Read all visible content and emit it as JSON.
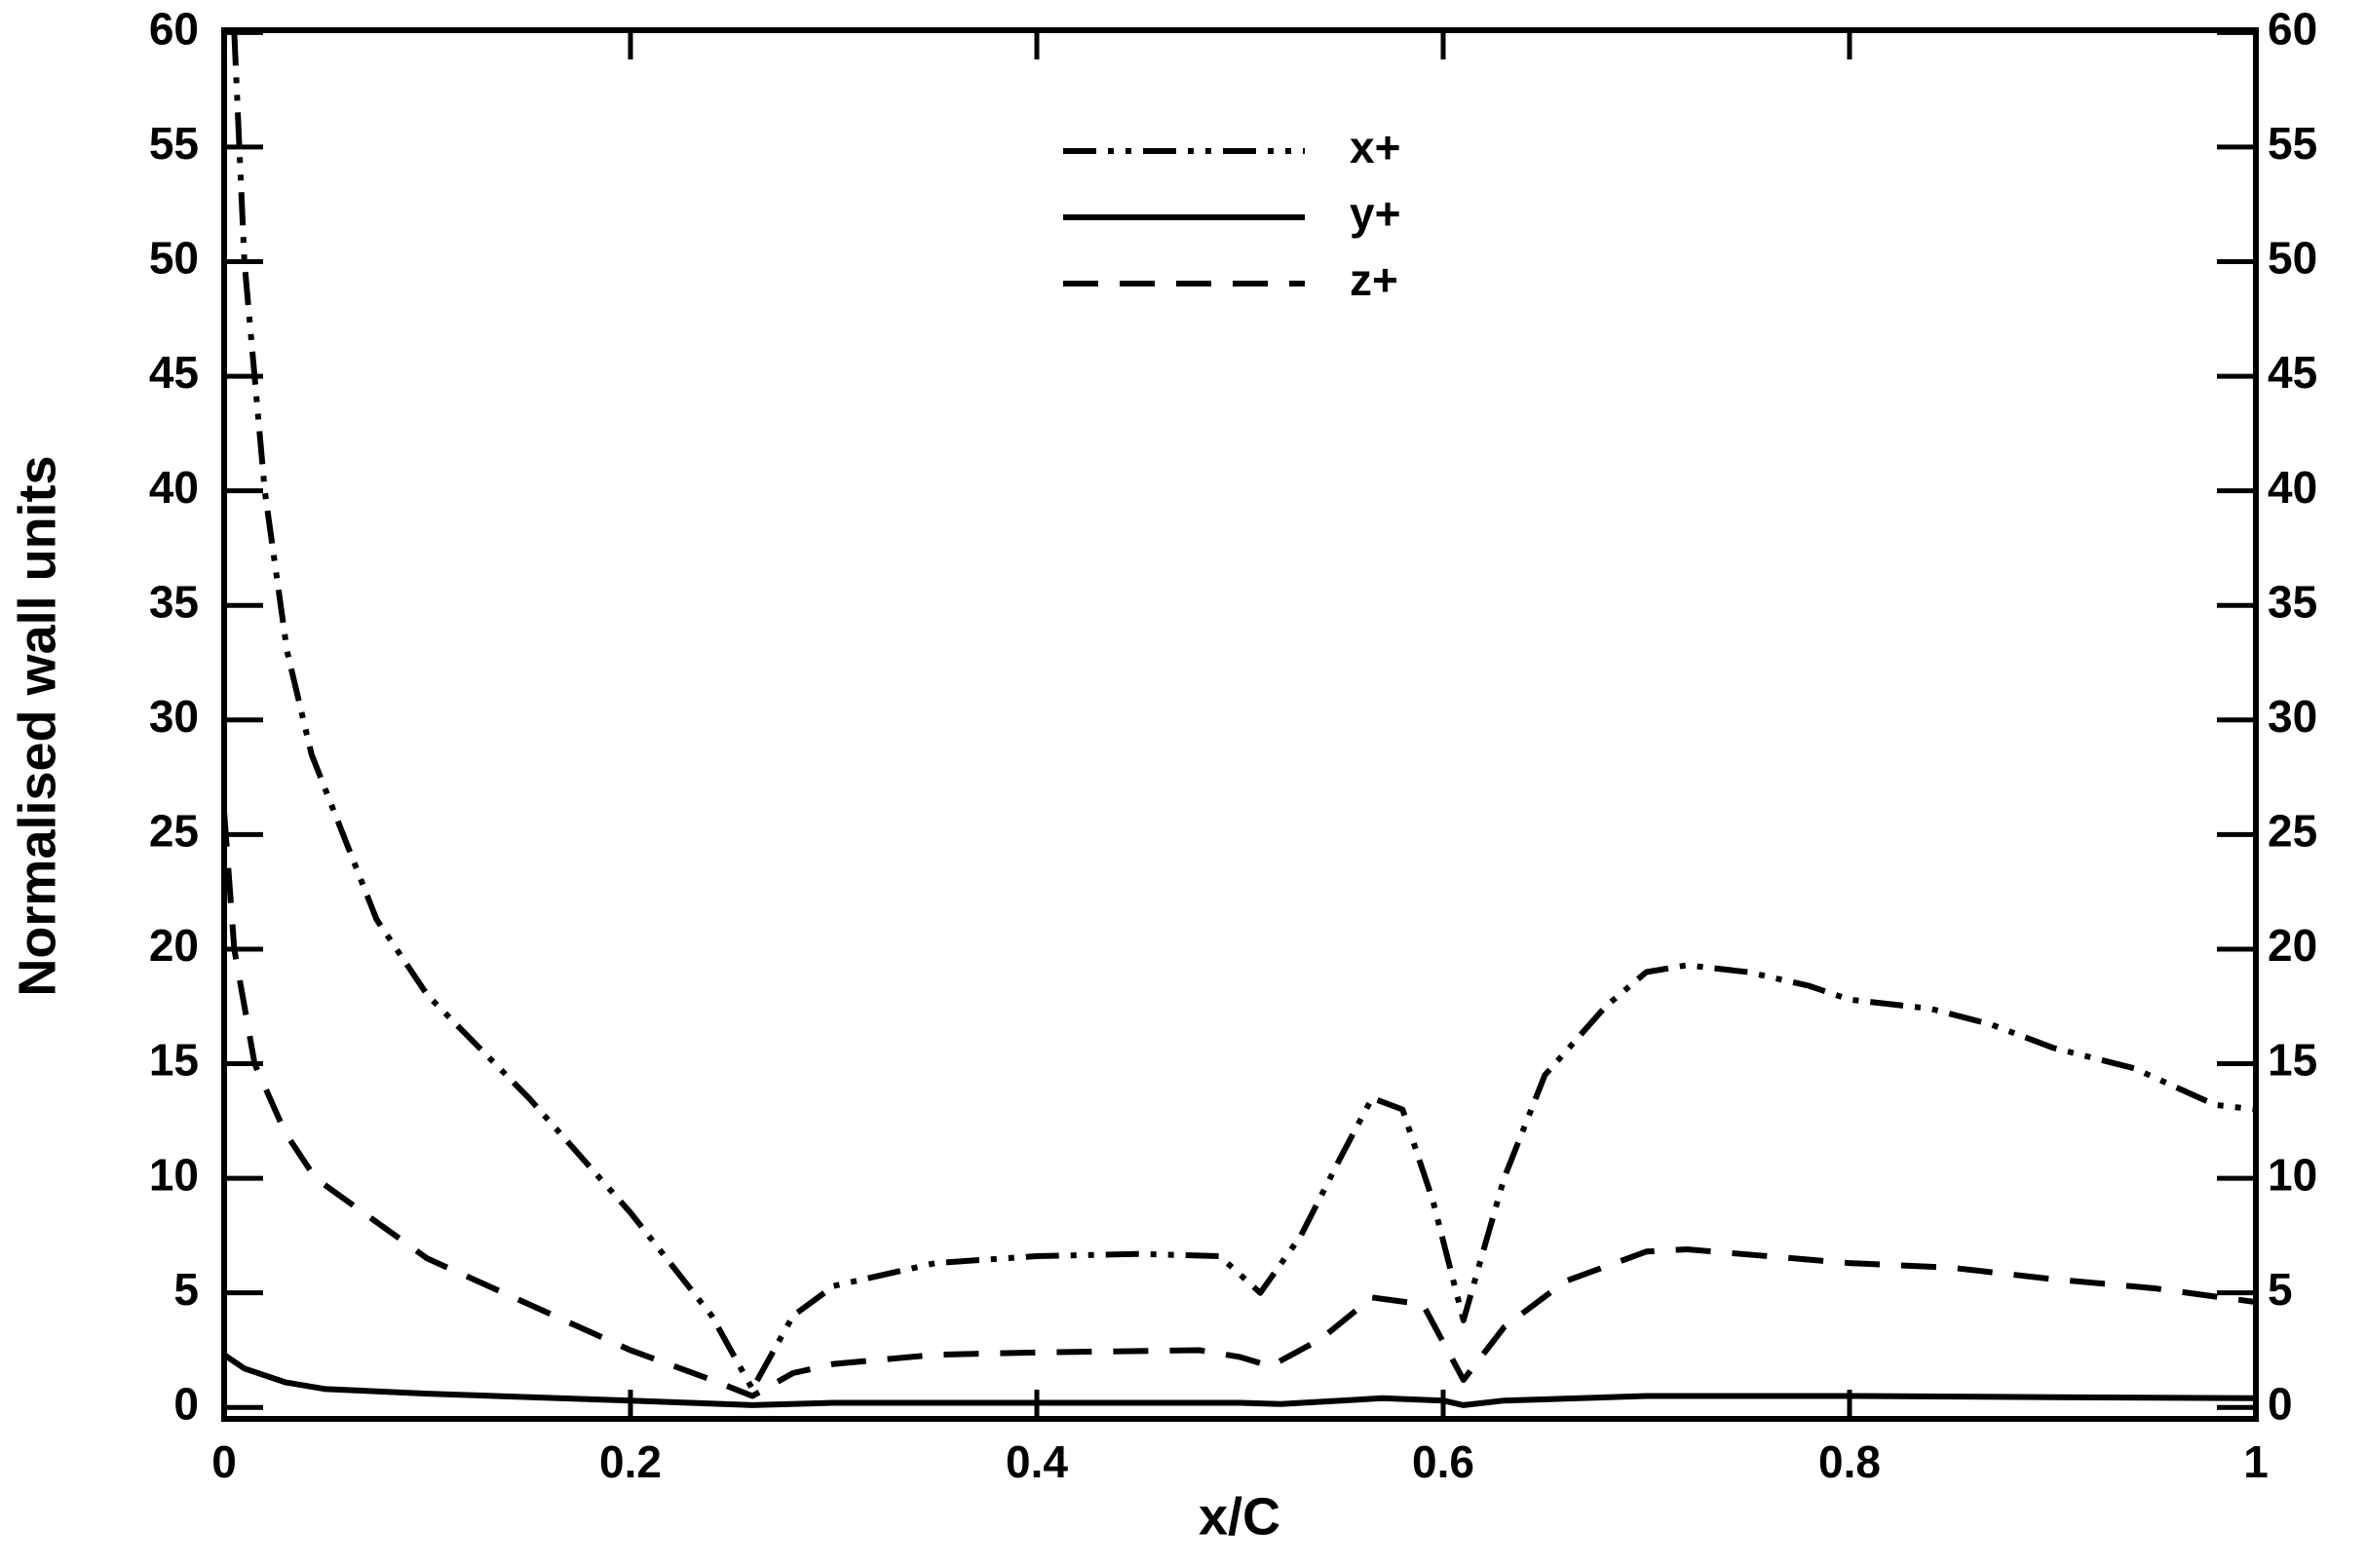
{
  "chart_data": {
    "type": "line",
    "x_label": "x/C",
    "y_label": "Normalised wall units",
    "xlim": [
      0,
      1
    ],
    "xticks": [
      0,
      0.2,
      0.4,
      0.6,
      0.8,
      1
    ],
    "ylim": [
      -0.5,
      60.1
    ],
    "yticks": [
      0,
      5,
      10,
      15,
      20,
      25,
      30,
      35,
      40,
      45,
      50,
      55,
      60
    ],
    "right_axis_labels": true,
    "legend": "top-center",
    "series": [
      {
        "name": "x+",
        "color": "#000000",
        "linestyle": "dashdotdot",
        "x": [
          0.005,
          0.01,
          0.02,
          0.031,
          0.043,
          0.075,
          0.1,
          0.15,
          0.2,
          0.24,
          0.26,
          0.28,
          0.3,
          0.35,
          0.4,
          0.45,
          0.49,
          0.51,
          0.53,
          0.55,
          0.565,
          0.58,
          0.595,
          0.61,
          0.63,
          0.65,
          0.68,
          0.7,
          0.72,
          0.75,
          0.78,
          0.8,
          0.84,
          0.87,
          0.9,
          0.94,
          0.98,
          1.0
        ],
        "values": [
          60,
          50,
          40,
          33,
          28.5,
          21.3,
          18,
          13.5,
          8.5,
          4,
          0.8,
          4,
          5.3,
          6.3,
          6.6,
          6.7,
          6.6,
          5,
          7.5,
          11,
          13.5,
          13,
          9,
          3.8,
          10,
          14.5,
          17.5,
          19,
          19.3,
          19,
          18.4,
          17.8,
          17.4,
          16.7,
          15.7,
          14.8,
          13.2,
          13
        ]
      },
      {
        "name": "y+",
        "color": "#000000",
        "linestyle": "solid",
        "x": [
          0,
          0.01,
          0.03,
          0.05,
          0.1,
          0.2,
          0.26,
          0.3,
          0.5,
          0.52,
          0.57,
          0.6,
          0.61,
          0.63,
          0.7,
          0.8,
          0.9,
          1.0
        ],
        "values": [
          2.3,
          1.7,
          1.1,
          0.8,
          0.6,
          0.3,
          0.1,
          0.2,
          0.2,
          0.15,
          0.4,
          0.3,
          0.1,
          0.3,
          0.5,
          0.5,
          0.45,
          0.4
        ]
      },
      {
        "name": "z+",
        "color": "#000000",
        "linestyle": "dashed",
        "x": [
          0,
          0.005,
          0.015,
          0.03,
          0.045,
          0.1,
          0.15,
          0.2,
          0.24,
          0.26,
          0.28,
          0.3,
          0.35,
          0.4,
          0.48,
          0.5,
          0.515,
          0.54,
          0.565,
          0.59,
          0.61,
          0.63,
          0.66,
          0.7,
          0.72,
          0.8,
          0.85,
          0.9,
          0.95,
          1.0
        ],
        "values": [
          26,
          20,
          15,
          12,
          10,
          6.5,
          4.5,
          2.5,
          1.2,
          0.5,
          1.5,
          1.9,
          2.3,
          2.4,
          2.5,
          2.2,
          1.8,
          3,
          4.8,
          4.5,
          1.2,
          3.5,
          5.5,
          6.8,
          6.9,
          6.3,
          6.1,
          5.6,
          5.2,
          4.6
        ]
      }
    ]
  }
}
